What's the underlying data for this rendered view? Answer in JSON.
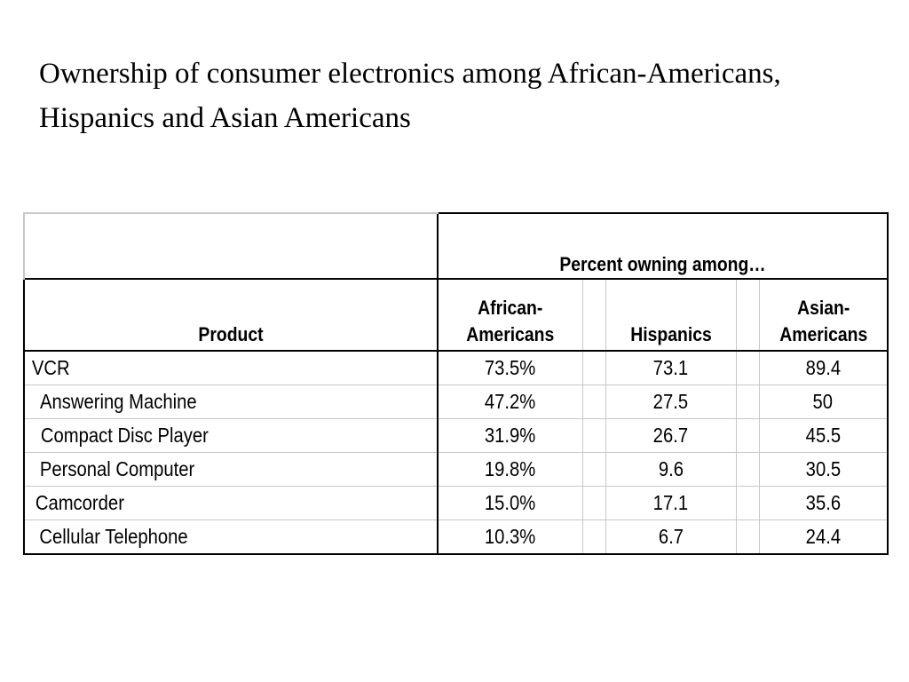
{
  "slide": {
    "title": "Ownership of consumer electronics among African-Americans, Hispanics and Asian Americans"
  },
  "table": {
    "group_header": "Percent owning among…",
    "columns": {
      "product": "Product",
      "african_line1": "African-",
      "african_line2": "Americans",
      "hispanics": "Hispanics",
      "asian_line1": "Asian-",
      "asian_line2": "Americans"
    },
    "rows": [
      {
        "product": "VCR",
        "african": "73.5%",
        "hispanics": "73.1",
        "asian": "89.4"
      },
      {
        "product": "Answering Machine",
        "african": "47.2%",
        "hispanics": "27.5",
        "asian": "50"
      },
      {
        "product": "Compact Disc Player",
        "african": "31.9%",
        "hispanics": "26.7",
        "asian": "45.5"
      },
      {
        "product": "Personal Computer",
        "african": "19.8%",
        "hispanics": "9.6",
        "asian": "30.5"
      },
      {
        "product": "Camcorder",
        "african": "15.0%",
        "hispanics": "17.1",
        "asian": "35.6"
      },
      {
        "product": "Cellular Telephone",
        "african": "10.3%",
        "hispanics": "6.7",
        "asian": "24.4"
      }
    ]
  }
}
